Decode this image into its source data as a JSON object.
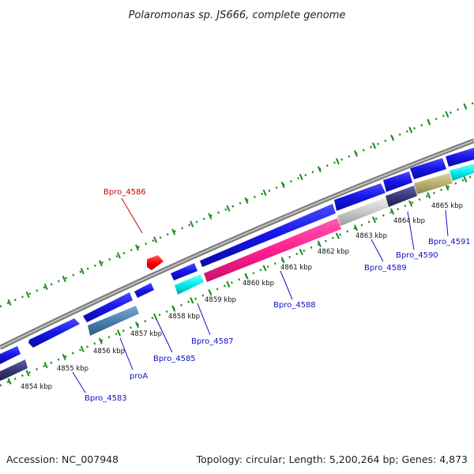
{
  "title": "Polaromonas sp. JS666, complete genome",
  "footer": {
    "accession": "Accession: NC_007948",
    "summary": "Topology: circular; Length: 5,200,264 bp; Genes: 4,873"
  },
  "colors": {
    "forward_gene": "#1515e6",
    "reverse_gene": "#38387a",
    "highlight_gene": "#ff1f8f",
    "cyan_gene": "#00eeee",
    "steel_gene": "#4a80b0",
    "gray_gene": "#c8c8c8",
    "olive_gene": "#b8b070",
    "selected_gene": "#ff0000",
    "backbone": "#8a8a8a",
    "ticks": "#1a8a1a",
    "blue_label": "#1010c8",
    "red_label": "#d00000"
  },
  "scale_labels": [
    "4854 kbp",
    "4855 kbp",
    "4856 kbp",
    "4857 kbp",
    "4858 kbp",
    "4859 kbp",
    "4860 kbp",
    "4861 kbp",
    "4862 kbp",
    "4863 kbp",
    "4864 kbp",
    "4865 kbp"
  ],
  "gene_labels": [
    "Bpro_4586",
    "Bpro_4583",
    "proA",
    "Bpro_4585",
    "Bpro_4587",
    "Bpro_4588",
    "Bpro_4589",
    "Bpro_4590",
    "Bpro_4591"
  ]
}
